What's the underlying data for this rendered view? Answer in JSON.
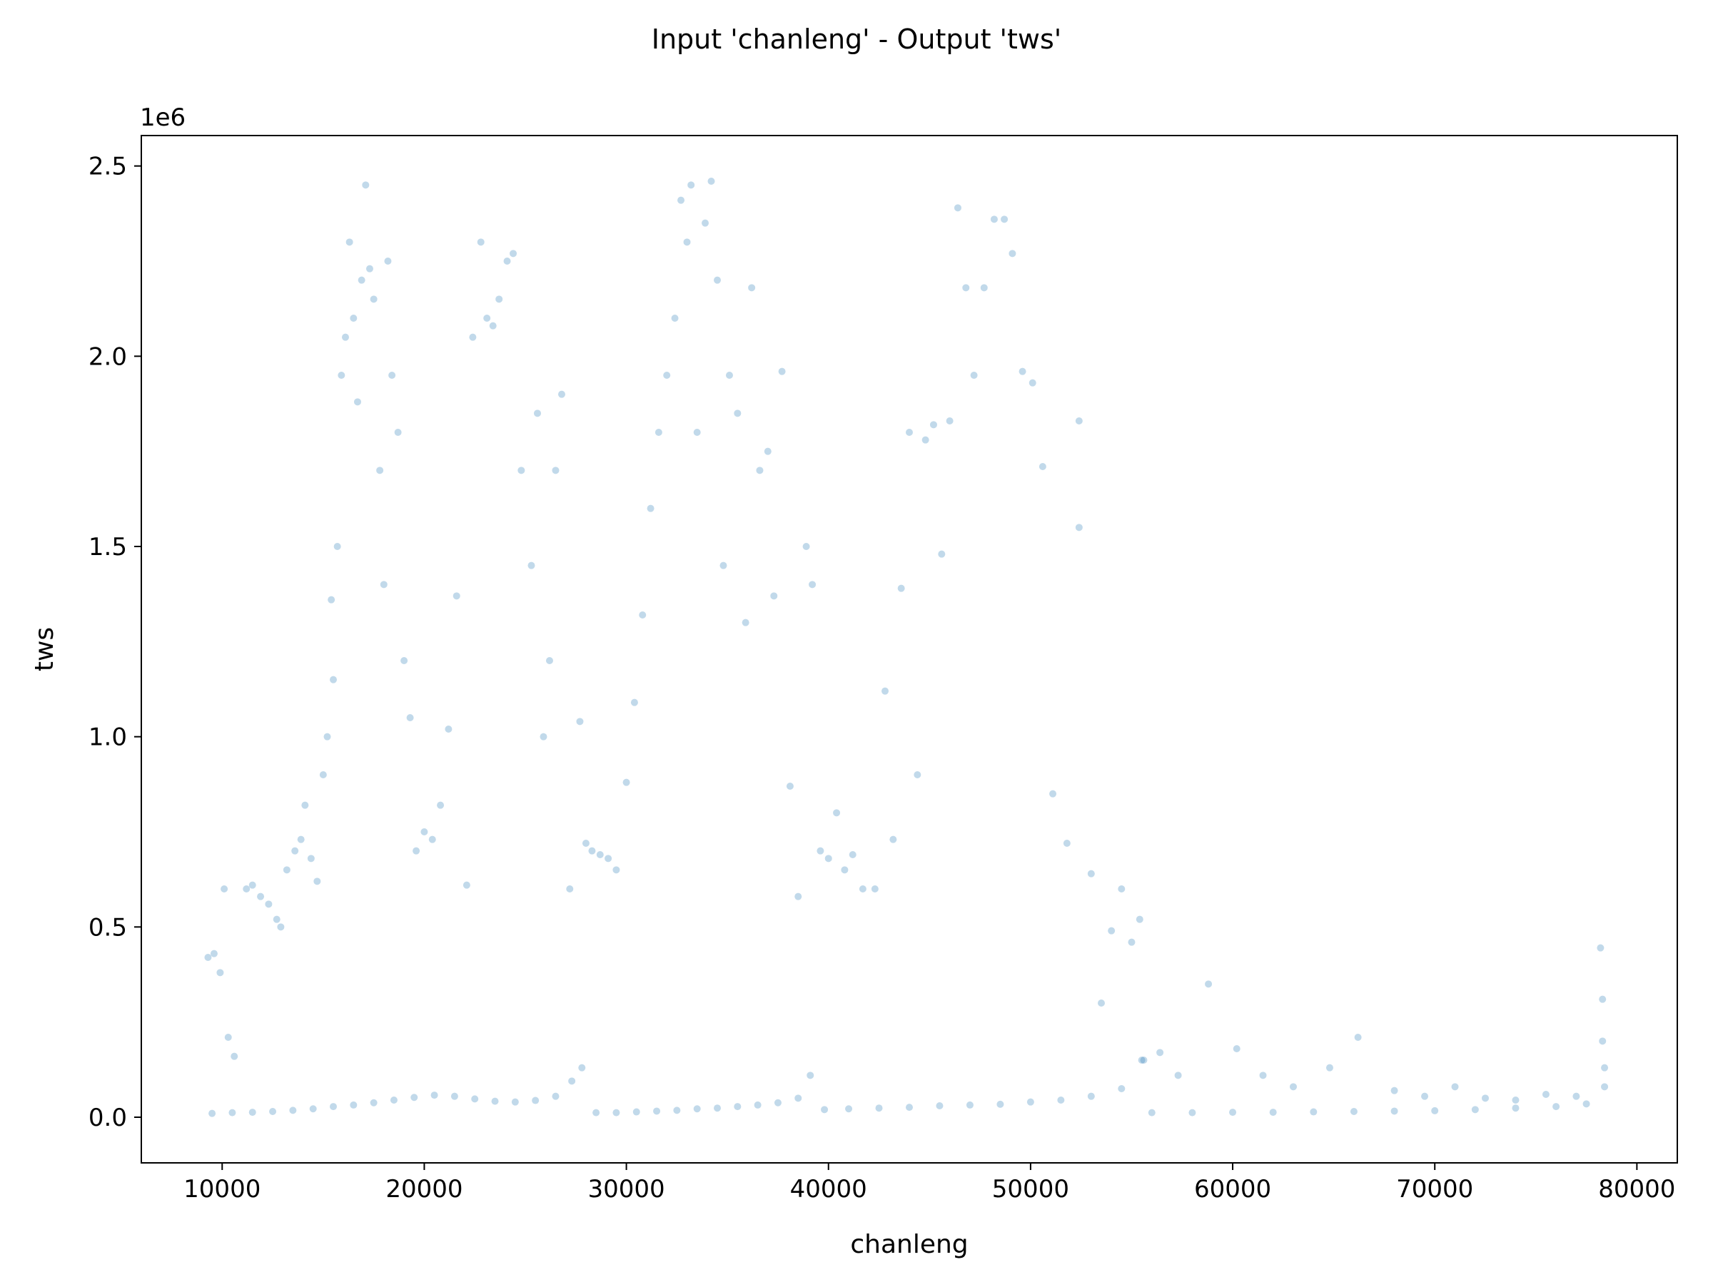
{
  "chart_data": {
    "type": "scatter",
    "title": "Input 'chanleng' - Output 'tws'",
    "xlabel": "chanleng",
    "ylabel": "tws",
    "y_scale_label": "1e6",
    "xlim": [
      6000,
      82000
    ],
    "ylim": [
      -120000,
      2580000
    ],
    "xticks": [
      10000,
      20000,
      30000,
      40000,
      50000,
      60000,
      70000,
      80000
    ],
    "xtick_labels": [
      "10000",
      "20000",
      "30000",
      "40000",
      "50000",
      "60000",
      "70000",
      "80000"
    ],
    "yticks": [
      0,
      500000,
      1000000,
      1500000,
      2000000,
      2500000
    ],
    "ytick_labels": [
      "0.0",
      "0.5",
      "1.0",
      "1.5",
      "2.0",
      "2.5"
    ],
    "grid": false,
    "point_color": "#1f77b4",
    "point_alpha": 0.28,
    "series": [
      {
        "values": [
          [
            9300,
            420000
          ],
          [
            9600,
            430000
          ],
          [
            9900,
            380000
          ],
          [
            10100,
            600000
          ],
          [
            10300,
            210000
          ],
          [
            10600,
            160000
          ],
          [
            11200,
            600000
          ],
          [
            11500,
            610000
          ],
          [
            11900,
            580000
          ],
          [
            12300,
            560000
          ],
          [
            12700,
            520000
          ],
          [
            12900,
            500000
          ],
          [
            13200,
            650000
          ],
          [
            13600,
            700000
          ],
          [
            13900,
            730000
          ],
          [
            14100,
            820000
          ],
          [
            14400,
            680000
          ],
          [
            14700,
            620000
          ],
          [
            15000,
            900000
          ],
          [
            15200,
            1000000
          ],
          [
            15400,
            1360000
          ],
          [
            15500,
            1150000
          ],
          [
            15700,
            1500000
          ],
          [
            15900,
            1950000
          ],
          [
            16100,
            2050000
          ],
          [
            16300,
            2300000
          ],
          [
            16500,
            2100000
          ],
          [
            16700,
            1880000
          ],
          [
            16900,
            2200000
          ],
          [
            17100,
            2450000
          ],
          [
            17300,
            2230000
          ],
          [
            17500,
            2150000
          ],
          [
            17800,
            1700000
          ],
          [
            18000,
            1400000
          ],
          [
            18200,
            2250000
          ],
          [
            18400,
            1950000
          ],
          [
            18700,
            1800000
          ],
          [
            19000,
            1200000
          ],
          [
            19300,
            1050000
          ],
          [
            19600,
            700000
          ],
          [
            20000,
            750000
          ],
          [
            20400,
            730000
          ],
          [
            20800,
            820000
          ],
          [
            21200,
            1020000
          ],
          [
            21600,
            1370000
          ],
          [
            22100,
            610000
          ],
          [
            22400,
            2050000
          ],
          [
            22800,
            2300000
          ],
          [
            23100,
            2100000
          ],
          [
            23400,
            2080000
          ],
          [
            23700,
            2150000
          ],
          [
            24100,
            2250000
          ],
          [
            24400,
            2270000
          ],
          [
            24800,
            1700000
          ],
          [
            25300,
            1450000
          ],
          [
            25600,
            1850000
          ],
          [
            25900,
            1000000
          ],
          [
            26200,
            1200000
          ],
          [
            26500,
            1700000
          ],
          [
            26800,
            1900000
          ],
          [
            27200,
            600000
          ],
          [
            27700,
            1040000
          ],
          [
            28000,
            720000
          ],
          [
            28300,
            700000
          ],
          [
            28700,
            690000
          ],
          [
            29100,
            680000
          ],
          [
            29500,
            650000
          ],
          [
            30000,
            880000
          ],
          [
            30400,
            1090000
          ],
          [
            30800,
            1320000
          ],
          [
            31200,
            1600000
          ],
          [
            31600,
            1800000
          ],
          [
            32000,
            1950000
          ],
          [
            32400,
            2100000
          ],
          [
            32700,
            2410000
          ],
          [
            33000,
            2300000
          ],
          [
            33200,
            2450000
          ],
          [
            33500,
            1800000
          ],
          [
            33900,
            2350000
          ],
          [
            34200,
            2460000
          ],
          [
            34500,
            2200000
          ],
          [
            34800,
            1450000
          ],
          [
            35100,
            1950000
          ],
          [
            35500,
            1850000
          ],
          [
            35900,
            1300000
          ],
          [
            36200,
            2180000
          ],
          [
            36600,
            1700000
          ],
          [
            37000,
            1750000
          ],
          [
            37300,
            1370000
          ],
          [
            37700,
            1960000
          ],
          [
            38100,
            870000
          ],
          [
            38500,
            580000
          ],
          [
            38900,
            1500000
          ],
          [
            39200,
            1400000
          ],
          [
            39600,
            700000
          ],
          [
            40000,
            680000
          ],
          [
            40400,
            800000
          ],
          [
            40800,
            650000
          ],
          [
            41200,
            690000
          ],
          [
            41700,
            600000
          ],
          [
            42300,
            600000
          ],
          [
            42800,
            1120000
          ],
          [
            43200,
            730000
          ],
          [
            43600,
            1390000
          ],
          [
            44000,
            1800000
          ],
          [
            44400,
            900000
          ],
          [
            44800,
            1780000
          ],
          [
            45200,
            1820000
          ],
          [
            45600,
            1480000
          ],
          [
            46000,
            1830000
          ],
          [
            46400,
            2390000
          ],
          [
            46800,
            2180000
          ],
          [
            47200,
            1950000
          ],
          [
            47700,
            2180000
          ],
          [
            48200,
            2360000
          ],
          [
            48700,
            2360000
          ],
          [
            49100,
            2270000
          ],
          [
            49600,
            1960000
          ],
          [
            50100,
            1930000
          ],
          [
            50600,
            1710000
          ],
          [
            51100,
            850000
          ],
          [
            51800,
            720000
          ],
          [
            52400,
            1830000
          ],
          [
            52400,
            1550000
          ],
          [
            53000,
            640000
          ],
          [
            53500,
            300000
          ],
          [
            54000,
            490000
          ],
          [
            54500,
            600000
          ],
          [
            55000,
            460000
          ],
          [
            55400,
            520000
          ],
          [
            55600,
            150000
          ],
          [
            56400,
            170000
          ],
          [
            57300,
            110000
          ],
          [
            58800,
            350000
          ],
          [
            60200,
            180000
          ],
          [
            61500,
            110000
          ],
          [
            63000,
            80000
          ],
          [
            64800,
            130000
          ],
          [
            66200,
            210000
          ],
          [
            68000,
            70000
          ],
          [
            69500,
            55000
          ],
          [
            71000,
            80000
          ],
          [
            72500,
            50000
          ],
          [
            74000,
            45000
          ],
          [
            75500,
            60000
          ],
          [
            77000,
            55000
          ],
          [
            78200,
            445000
          ],
          [
            78300,
            310000
          ],
          [
            78300,
            200000
          ],
          [
            9500,
            10000
          ],
          [
            10500,
            12000
          ],
          [
            11500,
            13000
          ],
          [
            12500,
            15000
          ],
          [
            13500,
            18000
          ],
          [
            14500,
            22000
          ],
          [
            15500,
            28000
          ],
          [
            16500,
            32000
          ],
          [
            17500,
            38000
          ],
          [
            18500,
            45000
          ],
          [
            19500,
            52000
          ],
          [
            20500,
            58000
          ],
          [
            21500,
            55000
          ],
          [
            22500,
            48000
          ],
          [
            23500,
            42000
          ],
          [
            24500,
            40000
          ],
          [
            25500,
            44000
          ],
          [
            26500,
            55000
          ],
          [
            27300,
            95000
          ],
          [
            27800,
            130000
          ],
          [
            28500,
            12000
          ],
          [
            29500,
            12000
          ],
          [
            30500,
            14000
          ],
          [
            31500,
            16000
          ],
          [
            32500,
            18000
          ],
          [
            33500,
            22000
          ],
          [
            34500,
            24000
          ],
          [
            35500,
            28000
          ],
          [
            36500,
            32000
          ],
          [
            37500,
            38000
          ],
          [
            38500,
            50000
          ],
          [
            39100,
            110000
          ],
          [
            39800,
            20000
          ],
          [
            41000,
            22000
          ],
          [
            42500,
            24000
          ],
          [
            44000,
            26000
          ],
          [
            45500,
            30000
          ],
          [
            47000,
            32000
          ],
          [
            48500,
            34000
          ],
          [
            50000,
            40000
          ],
          [
            51500,
            45000
          ],
          [
            53000,
            55000
          ],
          [
            54500,
            75000
          ],
          [
            55500,
            150000
          ],
          [
            56000,
            12000
          ],
          [
            58000,
            12000
          ],
          [
            60000,
            13000
          ],
          [
            62000,
            13000
          ],
          [
            64000,
            14000
          ],
          [
            66000,
            15000
          ],
          [
            68000,
            16000
          ],
          [
            70000,
            17000
          ],
          [
            72000,
            20000
          ],
          [
            74000,
            24000
          ],
          [
            76000,
            28000
          ],
          [
            77500,
            35000
          ],
          [
            78400,
            80000
          ],
          [
            78400,
            130000
          ]
        ]
      }
    ]
  }
}
